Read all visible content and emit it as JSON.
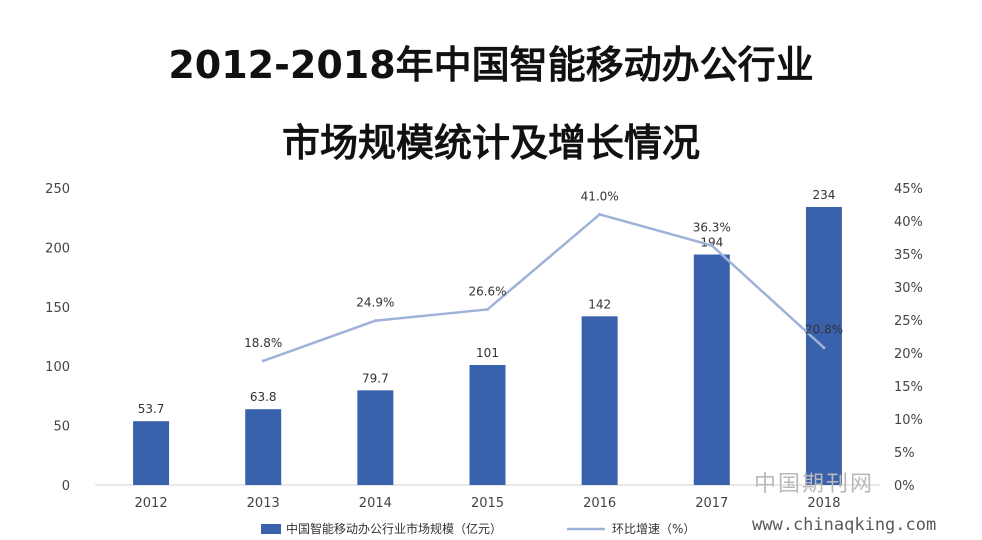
{
  "title_line1": "2012-2018年中国智能移动办公行业",
  "title_line2": "市场规模统计及增长情况",
  "chart_data": {
    "type": "bar",
    "categories": [
      "2012",
      "2013",
      "2014",
      "2015",
      "2016",
      "2017",
      "2018"
    ],
    "series": [
      {
        "name": "中国智能移动办公行业市场规模（亿元）",
        "type": "bar",
        "axis": "left",
        "color": "#3a62ac",
        "values": [
          53.7,
          63.8,
          79.7,
          101,
          142,
          194,
          234
        ],
        "labels": [
          "53.7",
          "63.8",
          "79.7",
          "101",
          "142",
          "194",
          "234"
        ]
      },
      {
        "name": "环比增速（%）",
        "type": "line",
        "axis": "right",
        "color": "#9fb2d9",
        "values": [
          null,
          18.8,
          24.9,
          26.6,
          41.0,
          36.3,
          20.8
        ],
        "labels": [
          "",
          "18.8%",
          "24.9%",
          "26.6%",
          "41.0%",
          "36.3%",
          "20.8%"
        ]
      }
    ],
    "y_left": {
      "min": 0,
      "max": 250,
      "ticks": [
        "0",
        "50",
        "100",
        "150",
        "200",
        "250"
      ]
    },
    "y_right": {
      "min": 0,
      "max": 45,
      "ticks": [
        "0%",
        "5%",
        "10%",
        "15%",
        "20%",
        "25%",
        "30%",
        "35%",
        "40%",
        "45%"
      ]
    },
    "grid": false,
    "legend_position": "bottom"
  },
  "watermark": {
    "cn": "中国期刊网",
    "url": "www.chinaqking.com"
  }
}
